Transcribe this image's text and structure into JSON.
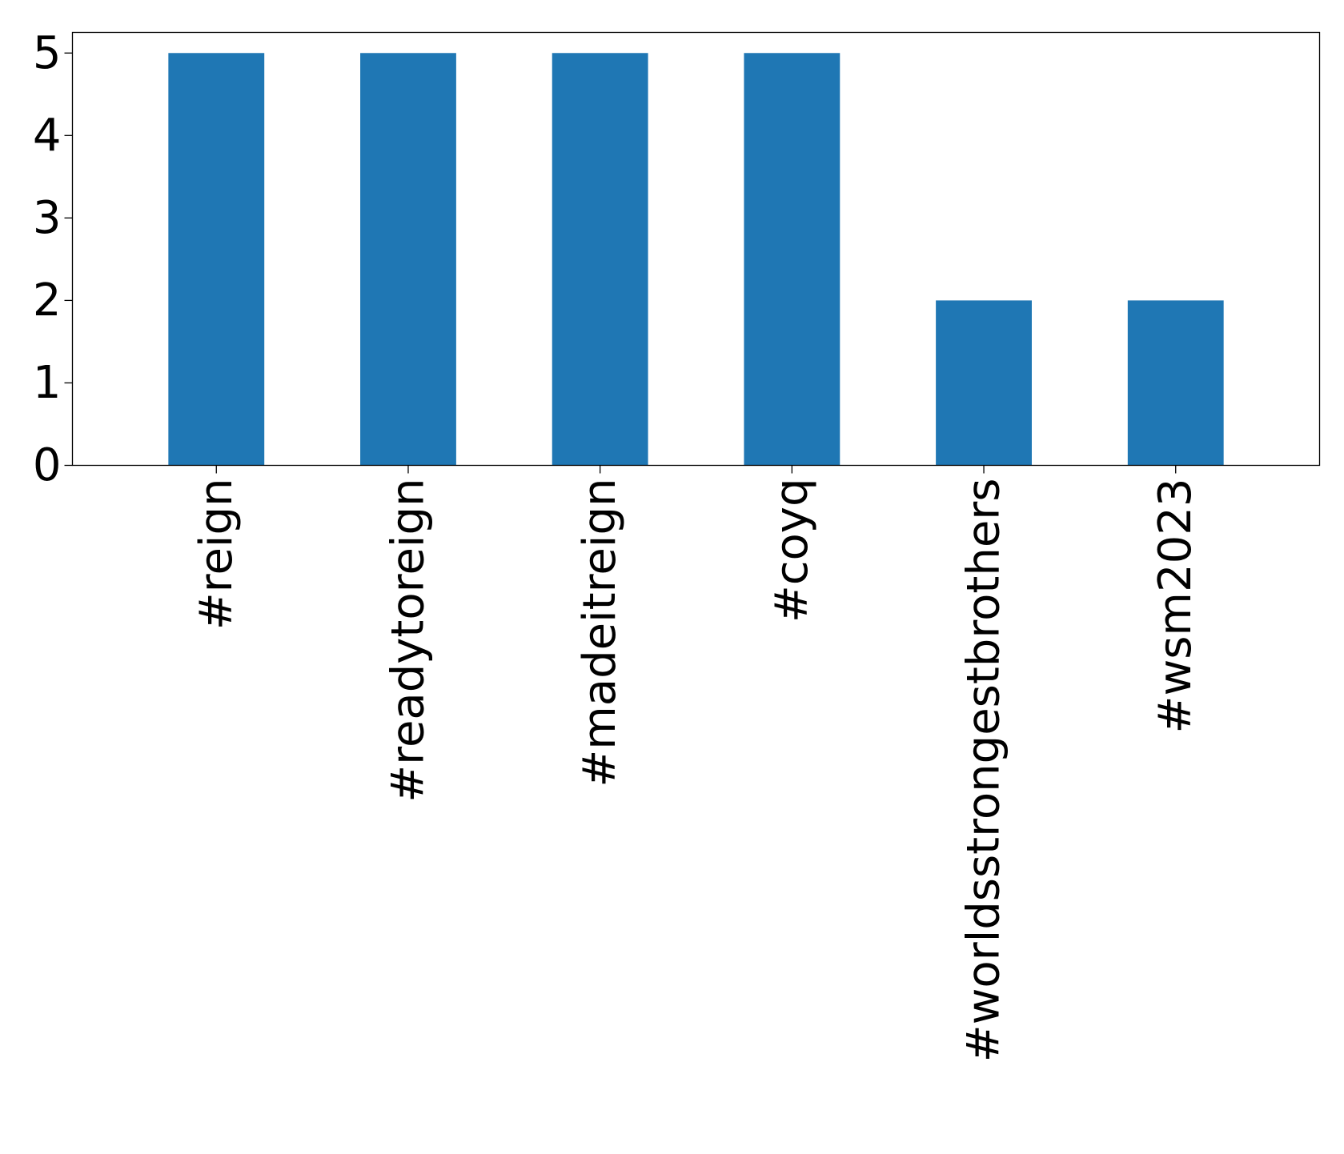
{
  "chart_data": {
    "type": "bar",
    "title": "",
    "xlabel": "",
    "ylabel": "",
    "categories": [
      "#reign",
      "#readytoreign",
      "#madeitreign",
      "#coyq",
      "#worldsstrongestbrothers",
      "#wsm2023"
    ],
    "values": [
      5,
      5,
      5,
      5,
      2,
      2
    ],
    "ylim": [
      0,
      5.25
    ],
    "yticks": [
      0,
      1,
      2,
      3,
      4,
      5
    ],
    "bar_color": "#1f77b4",
    "grid": false,
    "legend": "none"
  }
}
